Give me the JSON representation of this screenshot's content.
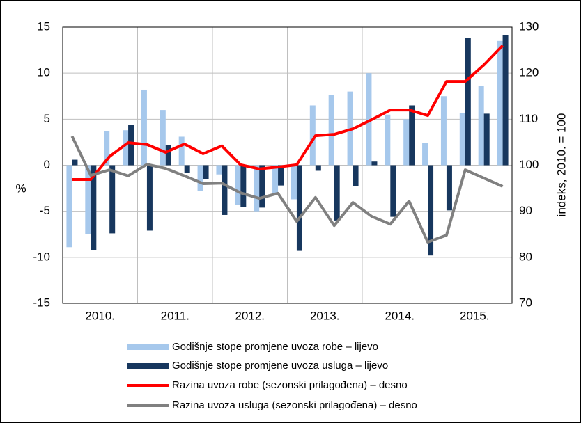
{
  "chart_data": {
    "type": "bar_line",
    "categories": [
      null,
      null,
      null,
      null,
      null,
      null,
      null,
      null,
      null,
      null,
      null,
      null,
      null,
      null,
      null,
      null,
      null,
      null,
      null,
      null,
      null,
      null,
      null,
      null
    ],
    "groups": [
      "2010.",
      "2011.",
      "2012.",
      "2013.",
      "2014.",
      "2015."
    ],
    "ylabel": "%",
    "y2label": "indeks, 2010. = 100",
    "ylim": [
      -15,
      15
    ],
    "yticks": [
      -15,
      -10,
      -5,
      0,
      5,
      10,
      15
    ],
    "y2lim": [
      70,
      130
    ],
    "y2ticks": [
      70,
      80,
      90,
      100,
      110,
      120,
      130
    ],
    "grid": true,
    "series": [
      {
        "name": "Godišnje stope promjene uvoza robe – lijevo",
        "type": "bar",
        "color": "#a6c8ec",
        "values": [
          -8.9,
          -7.5,
          3.7,
          3.8,
          8.2,
          6.0,
          3.1,
          -2.8,
          -1.0,
          -4.3,
          -5.0,
          -3.0,
          -3.7,
          6.5,
          7.6,
          8.0,
          10.0,
          5.5,
          5.0,
          2.4,
          7.5,
          5.7,
          8.6,
          13.5
        ]
      },
      {
        "name": "Godišnje stope promjene uvoza usluga – lijevo",
        "type": "bar",
        "color": "#17375e",
        "values": [
          0.6,
          -9.2,
          -7.4,
          4.4,
          -7.1,
          2.2,
          -0.8,
          -1.5,
          -5.4,
          -4.5,
          -4.6,
          -2.2,
          -9.3,
          -0.6,
          -6.0,
          -2.3,
          0.4,
          -5.6,
          6.5,
          -9.8,
          -4.9,
          13.8,
          5.6,
          14.1
        ]
      },
      {
        "name": "Razina uvoza robe (sezonski prilagođena) – desno",
        "type": "line",
        "axis": "y2",
        "color": "#ff0000",
        "values": [
          96.9,
          96.9,
          101.9,
          104.9,
          104.5,
          102.8,
          104.6,
          102.5,
          104.2,
          100.1,
          99.2,
          99.6,
          100.1,
          106.4,
          106.7,
          107.9,
          109.9,
          112,
          112,
          110.8,
          118.2,
          118.2,
          121.8,
          126
        ]
      },
      {
        "name": "Razina uvoza usluga (sezonski prilagođena) – desno",
        "type": "line",
        "axis": "y2",
        "color": "#808080",
        "values": [
          106.3,
          97.8,
          99,
          97.7,
          100.2,
          99.3,
          97.7,
          96,
          96.1,
          94,
          92.8,
          93.9,
          87.8,
          93,
          86.9,
          91.9,
          88.9,
          87.2,
          92.2,
          83.3,
          84.8,
          99,
          97.2,
          95.4
        ]
      }
    ]
  }
}
